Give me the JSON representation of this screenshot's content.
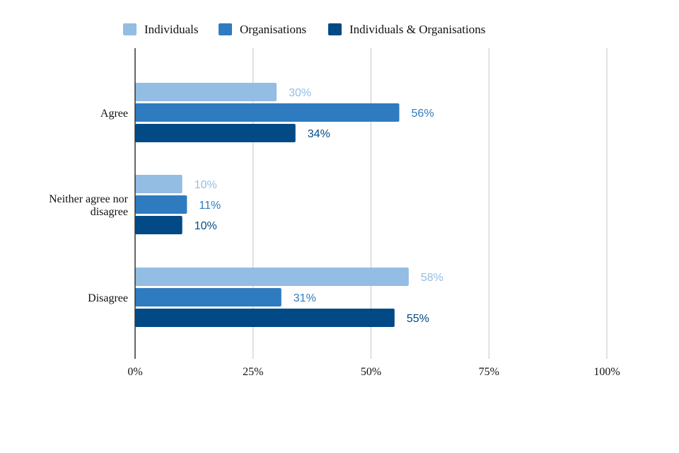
{
  "chart_data": {
    "type": "bar",
    "orientation": "horizontal",
    "categories": [
      "Agree",
      "Neither agree nor disagree",
      "Disagree"
    ],
    "category_lines": [
      [
        "Agree"
      ],
      [
        "Neither agree nor",
        "disagree"
      ],
      [
        "Disagree"
      ]
    ],
    "series": [
      {
        "name": "Individuals",
        "color": "#93bde3",
        "values": [
          30,
          10,
          58
        ],
        "labels": [
          "30%",
          "10%",
          "58%"
        ]
      },
      {
        "name": "Organisations",
        "color": "#2f7bbf",
        "values": [
          56,
          11,
          31
        ],
        "labels": [
          "56%",
          "11%",
          "31%"
        ]
      },
      {
        "name": "Individuals & Organisations",
        "color": "#024a85",
        "values": [
          34,
          10,
          55
        ],
        "labels": [
          "34%",
          "10%",
          "55%"
        ]
      }
    ],
    "xlim": [
      0,
      100
    ],
    "ticks": [
      "0%",
      "25%",
      "50%",
      "75%",
      "100%"
    ],
    "tick_values": [
      0,
      25,
      50,
      75,
      100
    ],
    "grid": true,
    "legend_position": "top"
  }
}
